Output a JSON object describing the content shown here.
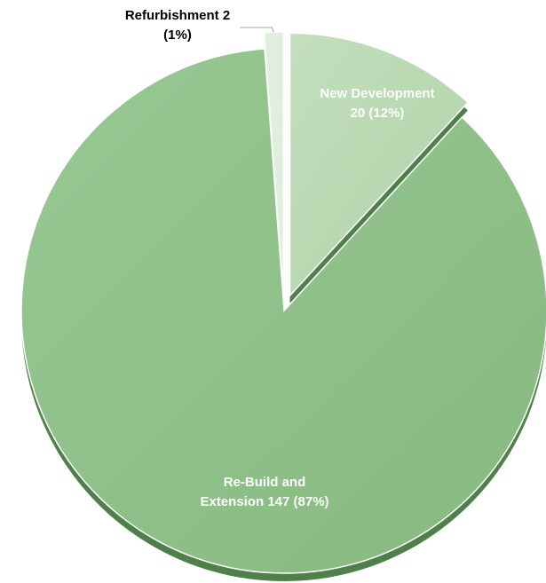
{
  "chart_data": {
    "type": "pie",
    "title": "",
    "slices": [
      {
        "name": "New Development",
        "value": 20,
        "percent": "12%",
        "label_lines": [
          "New Development",
          "20 (12%)"
        ],
        "color": "#b6d7b0",
        "label_color": "#ffffff"
      },
      {
        "name": "Re-Build and Extension",
        "value": 147,
        "percent": "87%",
        "label_lines": [
          "Re-Build and",
          "Extension 147 (87%)"
        ],
        "color": "#8fc08a",
        "label_color": "#ffffff"
      },
      {
        "name": "Refurbishment",
        "value": 2,
        "percent": "1%",
        "label_lines": [
          "Refurbishment 2",
          "(1%)"
        ],
        "color": "#dfeedd",
        "label_color": "#000000"
      }
    ],
    "exploded": true,
    "legend": "none"
  }
}
